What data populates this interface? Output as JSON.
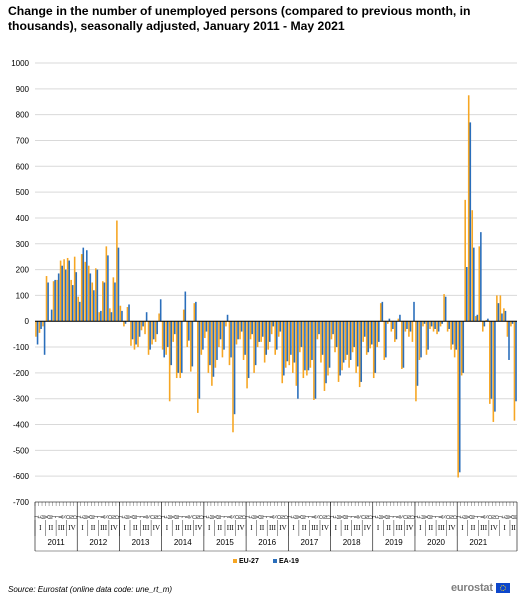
{
  "title": "Change in the number of unemployed persons (compared to previous month, in thousands), seasonally adjusted, January 2011 - May 2021",
  "source": "Source: Eurostat (online data code: une_rt_m)",
  "logo": {
    "text": "eurostat",
    "icon": "eu-flag-icon"
  },
  "colors": {
    "eu27": "#f6a623",
    "ea19": "#2a6ebb",
    "grid": "#d9d9d9",
    "axis": "#000000"
  },
  "chart_data": {
    "type": "bar",
    "title": "Change in the number of unemployed persons (compared to previous month, in thousands), seasonally adjusted, January 2011 - May 2021",
    "ylim": [
      -700,
      1000
    ],
    "yticks": [
      -700,
      -600,
      -500,
      -400,
      -300,
      -200,
      -100,
      0,
      100,
      200,
      300,
      400,
      500,
      600,
      700,
      800,
      900,
      1000
    ],
    "grid": true,
    "legend_position": "bottom",
    "month_labels": [
      "J",
      "F",
      "M",
      "A",
      "M",
      "J",
      "J",
      "A",
      "S",
      "O",
      "N",
      "D"
    ],
    "quarter_labels": [
      "I",
      "II",
      "III",
      "IV"
    ],
    "years": [
      "2011",
      "2012",
      "2013",
      "2014",
      "2015",
      "2016",
      "2017",
      "2018",
      "2019",
      "2020",
      "2021"
    ],
    "series": [
      {
        "name": "EU-27",
        "values": [
          -60,
          -45,
          -20,
          175,
          5,
          155,
          160,
          235,
          240,
          245,
          160,
          250,
          95,
          260,
          230,
          215,
          150,
          205,
          35,
          155,
          290,
          50,
          170,
          390,
          60,
          -20,
          55,
          -95,
          -110,
          -100,
          -35,
          -50,
          -130,
          -90,
          -80,
          30,
          -110,
          -130,
          -310,
          -80,
          -220,
          -220,
          45,
          -100,
          -195,
          70,
          -355,
          -130,
          -65,
          -200,
          -250,
          -180,
          -100,
          -140,
          -20,
          -170,
          -430,
          -90,
          -70,
          -150,
          -260,
          -70,
          -200,
          -100,
          -80,
          -160,
          -110,
          -50,
          -130,
          -60,
          -240,
          -180,
          -170,
          -200,
          -250,
          -120,
          -220,
          -210,
          -180,
          -305,
          -70,
          -160,
          -270,
          -210,
          -70,
          -120,
          -235,
          -190,
          -150,
          -180,
          -120,
          -200,
          -255,
          -80,
          -130,
          -105,
          -220,
          -100,
          70,
          -150,
          -10,
          -40,
          -80,
          10,
          -185,
          -40,
          -60,
          -80,
          -310,
          -150,
          -20,
          -130,
          -30,
          -40,
          -50,
          -20,
          105,
          -40,
          -110,
          -140,
          -605,
          -210,
          470,
          875,
          430,
          20,
          290,
          -40,
          5,
          -320,
          -390,
          100,
          100,
          50,
          -60,
          -20,
          -385
        ]
      },
      {
        "name": "EA-19",
        "values": [
          -90,
          -30,
          -130,
          150,
          45,
          160,
          185,
          215,
          200,
          235,
          140,
          190,
          75,
          285,
          275,
          185,
          120,
          200,
          40,
          150,
          255,
          35,
          150,
          285,
          40,
          -10,
          65,
          -70,
          -90,
          -60,
          -20,
          35,
          -110,
          -70,
          -50,
          85,
          -140,
          -100,
          -170,
          -50,
          -200,
          -200,
          115,
          -75,
          -175,
          75,
          -300,
          -110,
          -40,
          -170,
          -215,
          -150,
          -70,
          -110,
          25,
          -140,
          -360,
          -70,
          -40,
          -130,
          -220,
          -50,
          -170,
          -80,
          -60,
          -130,
          -80,
          -20,
          -110,
          -40,
          -210,
          -155,
          -130,
          -160,
          -300,
          -100,
          -190,
          -190,
          -150,
          -300,
          -50,
          -130,
          -240,
          -180,
          -50,
          -100,
          -210,
          -160,
          -130,
          -150,
          -100,
          -175,
          -235,
          -60,
          -120,
          -90,
          -200,
          -80,
          75,
          -140,
          10,
          -30,
          -70,
          25,
          -180,
          -30,
          -40,
          75,
          -250,
          -140,
          -10,
          -110,
          -20,
          -30,
          -40,
          -10,
          95,
          -30,
          -90,
          -110,
          -585,
          -200,
          210,
          770,
          285,
          25,
          345,
          -20,
          10,
          -300,
          -350,
          70,
          30,
          40,
          -150,
          -10,
          -310
        ]
      }
    ]
  }
}
